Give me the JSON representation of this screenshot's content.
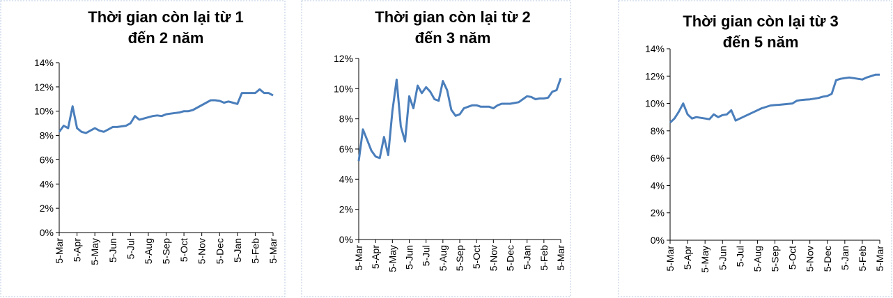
{
  "chart_data": [
    {
      "type": "line",
      "title": [
        "Thời gian còn lại từ 1",
        "đến 2  năm"
      ],
      "categories": [
        "5-Mar",
        null,
        null,
        null,
        "5-Apr",
        null,
        null,
        null,
        "5-May",
        null,
        null,
        null,
        "5-Jun",
        null,
        null,
        null,
        "5-Jul",
        null,
        null,
        null,
        "5-Aug",
        null,
        null,
        null,
        "5-Sep",
        null,
        null,
        null,
        "5-Oct",
        null,
        null,
        null,
        "5-Nov",
        null,
        null,
        null,
        "5-Dec",
        null,
        null,
        null,
        "5-Jan",
        null,
        null,
        null,
        "5-Feb",
        null,
        null,
        null,
        "5-Mar"
      ],
      "series": [
        {
          "color": "#4a7ebb",
          "values": [
            8.3,
            8.8,
            8.6,
            10.4,
            8.6,
            8.3,
            8.2,
            8.4,
            8.6,
            8.4,
            8.3,
            8.5,
            8.7,
            8.7,
            8.75,
            8.8,
            9.0,
            9.6,
            9.3,
            9.4,
            9.5,
            9.6,
            9.65,
            9.6,
            9.75,
            9.8,
            9.85,
            9.9,
            10.0,
            10.0,
            10.1,
            10.3,
            10.5,
            10.7,
            10.9,
            10.9,
            10.85,
            10.7,
            10.8,
            10.7,
            10.6,
            11.5,
            11.5,
            11.5,
            11.5,
            11.8,
            11.5,
            11.5,
            11.3
          ]
        }
      ],
      "ylim": [
        0,
        14
      ],
      "yticks": [
        {
          "value": 0,
          "label": "0%"
        },
        {
          "value": 2,
          "label": "2%"
        },
        {
          "value": 4,
          "label": "4%"
        },
        {
          "value": 6,
          "label": "6%"
        },
        {
          "value": 8,
          "label": "8%"
        },
        {
          "value": 10,
          "label": "10%"
        },
        {
          "value": 12,
          "label": "12%"
        },
        {
          "value": 14,
          "label": "14%"
        }
      ]
    },
    {
      "type": "line",
      "title": [
        "Thời gian còn lại từ 2",
        "đến 3 năm"
      ],
      "categories": [
        "5-Mar",
        null,
        null,
        null,
        "5-Apr",
        null,
        null,
        null,
        "5-May",
        null,
        null,
        null,
        "5-Jun",
        null,
        null,
        null,
        "5-Jul",
        null,
        null,
        null,
        "5-Aug",
        null,
        null,
        null,
        "5-Sep",
        null,
        null,
        null,
        "5-Oct",
        null,
        null,
        null,
        "5-Nov",
        null,
        null,
        null,
        "5-Dec",
        null,
        null,
        null,
        "5-Jan",
        null,
        null,
        null,
        "5-Feb",
        null,
        null,
        null,
        "5-Mar"
      ],
      "series": [
        {
          "color": "#4a7ebb",
          "values": [
            5.2,
            7.3,
            6.6,
            5.9,
            5.5,
            5.4,
            6.8,
            5.6,
            8.5,
            10.6,
            7.5,
            6.5,
            9.5,
            8.7,
            10.2,
            9.7,
            10.1,
            9.8,
            9.3,
            9.2,
            10.5,
            9.9,
            8.6,
            8.2,
            8.3,
            8.7,
            8.8,
            8.9,
            8.9,
            8.8,
            8.8,
            8.8,
            8.7,
            8.9,
            9.0,
            9.0,
            9.0,
            9.05,
            9.1,
            9.3,
            9.5,
            9.45,
            9.3,
            9.35,
            9.35,
            9.4,
            9.8,
            9.9,
            10.7
          ]
        }
      ],
      "ylim": [
        0,
        12
      ],
      "yticks": [
        {
          "value": 0,
          "label": "0%"
        },
        {
          "value": 2,
          "label": "2%"
        },
        {
          "value": 4,
          "label": "4%"
        },
        {
          "value": 6,
          "label": "6%"
        },
        {
          "value": 8,
          "label": "8%"
        },
        {
          "value": 10,
          "label": "10%"
        },
        {
          "value": 12,
          "label": "12%"
        }
      ]
    },
    {
      "type": "line",
      "title": [
        "Thời gian còn lại từ 3",
        "đến 5 năm"
      ],
      "categories": [
        "5-Mar",
        null,
        null,
        null,
        "5-Apr",
        null,
        null,
        null,
        "5-May",
        null,
        null,
        null,
        "5-Jun",
        null,
        null,
        null,
        "5-Jul",
        null,
        null,
        null,
        "5-Aug",
        null,
        null,
        null,
        "5-Sep",
        null,
        null,
        null,
        "5-Oct",
        null,
        null,
        null,
        "5-Nov",
        null,
        null,
        null,
        "5-Dec",
        null,
        null,
        null,
        "5-Jan",
        null,
        null,
        null,
        "5-Feb",
        null,
        null,
        null,
        "5-Mar"
      ],
      "series": [
        {
          "color": "#4a7ebb",
          "values": [
            8.6,
            8.9,
            9.4,
            10.0,
            9.2,
            8.9,
            9.0,
            8.95,
            8.9,
            8.85,
            9.2,
            9.0,
            9.15,
            9.2,
            9.5,
            8.75,
            8.9,
            9.05,
            9.2,
            9.35,
            9.5,
            9.65,
            9.75,
            9.85,
            9.88,
            9.9,
            9.93,
            9.97,
            10.0,
            10.2,
            10.25,
            10.28,
            10.3,
            10.35,
            10.4,
            10.5,
            10.55,
            10.7,
            11.7,
            11.8,
            11.85,
            11.9,
            11.85,
            11.8,
            11.75,
            11.9,
            12.0,
            12.1,
            12.1
          ]
        }
      ],
      "ylim": [
        0,
        14
      ],
      "yticks": [
        {
          "value": 0,
          "label": "0%"
        },
        {
          "value": 2,
          "label": "2%"
        },
        {
          "value": 4,
          "label": "4%"
        },
        {
          "value": 6,
          "label": "6%"
        },
        {
          "value": 8,
          "label": "8%"
        },
        {
          "value": 10,
          "label": "10%"
        },
        {
          "value": 12,
          "label": "12%"
        },
        {
          "value": 14,
          "label": "14%"
        }
      ]
    }
  ]
}
